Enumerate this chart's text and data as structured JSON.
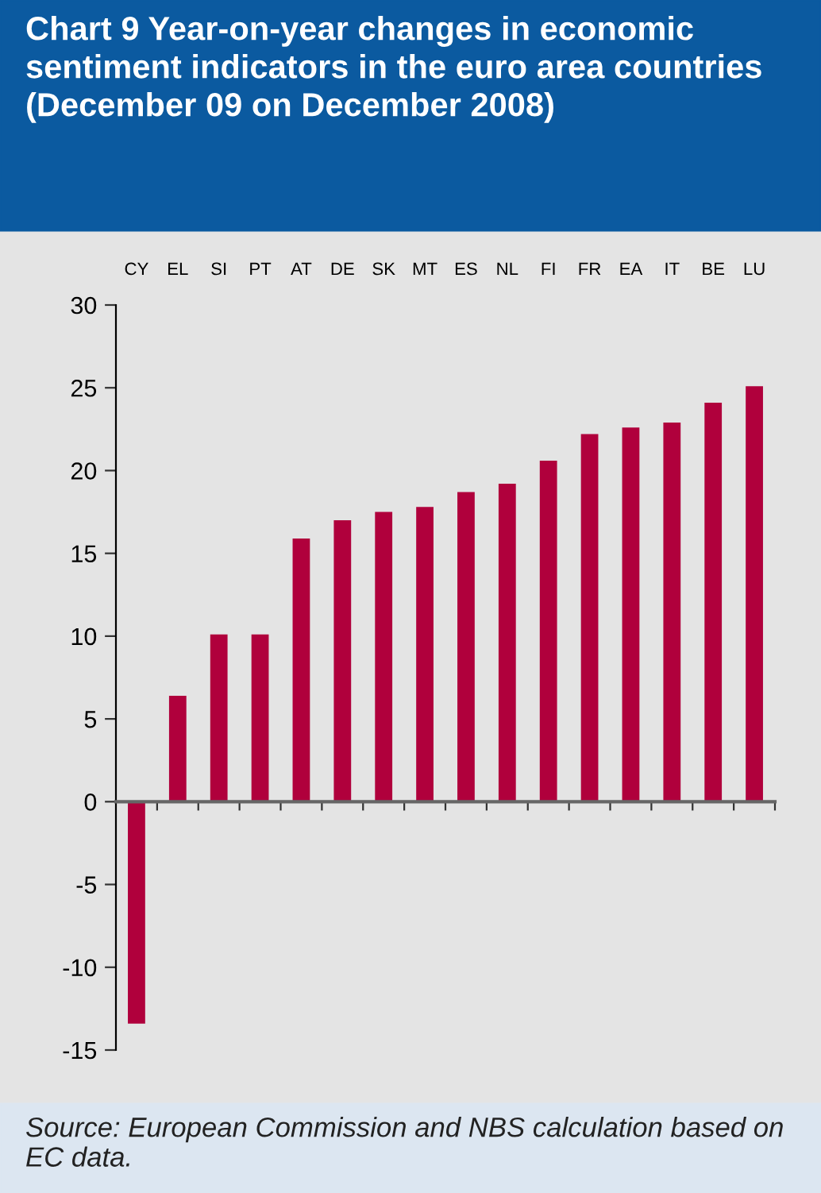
{
  "chart_data": {
    "type": "bar",
    "title": "Chart 9 Year-on-year changes in economic sentiment indicators in the euro area countries (December 09 on December 2008)",
    "categories": [
      "CY",
      "EL",
      "SI",
      "PT",
      "AT",
      "DE",
      "SK",
      "MT",
      "ES",
      "NL",
      "FI",
      "FR",
      "EA",
      "IT",
      "BE",
      "LU"
    ],
    "values": [
      -13.4,
      6.4,
      10.1,
      10.1,
      15.9,
      17.0,
      17.5,
      17.8,
      18.7,
      19.2,
      20.6,
      22.2,
      22.6,
      22.9,
      24.1,
      25.1
    ],
    "color": "#b0003c",
    "ylim": [
      -15,
      30
    ],
    "yticks": [
      -15,
      -10,
      -5,
      0,
      5,
      10,
      15,
      20,
      25,
      30
    ],
    "annotations": [
      "Source: European Commission and NBS calculation based on EC data."
    ]
  }
}
